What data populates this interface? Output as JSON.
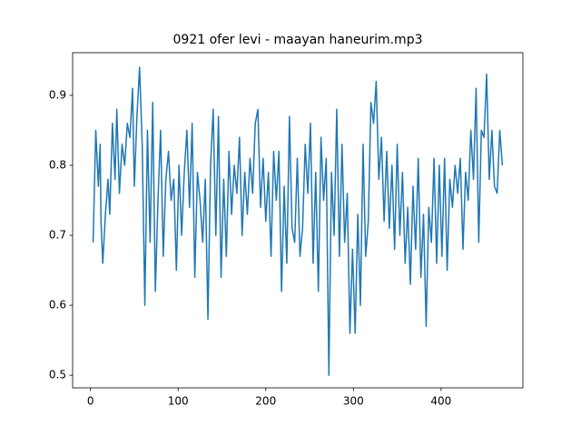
{
  "chart_data": {
    "type": "line",
    "title": "0921 ofer levi - maayan haneurim.mp3",
    "x": [
      3,
      6,
      9,
      11,
      12,
      14,
      17,
      20,
      22,
      25,
      28,
      30,
      33,
      36,
      39,
      42,
      45,
      48,
      50,
      53,
      56,
      59,
      62,
      65,
      68,
      71,
      74,
      77,
      80,
      83,
      86,
      89,
      92,
      95,
      98,
      101,
      104,
      107,
      110,
      113,
      116,
      119,
      122,
      125,
      128,
      131,
      134,
      137,
      140,
      143,
      146,
      149,
      152,
      155,
      158,
      161,
      164,
      167,
      170,
      173,
      176,
      179,
      182,
      185,
      188,
      191,
      194,
      197,
      200,
      203,
      206,
      209,
      212,
      215,
      218,
      221,
      224,
      227,
      230,
      233,
      236,
      239,
      242,
      245,
      248,
      251,
      254,
      257,
      260,
      263,
      266,
      269,
      272,
      275,
      278,
      281,
      284,
      287,
      290,
      293,
      296,
      299,
      302,
      305,
      308,
      311,
      314,
      317,
      320,
      323,
      326,
      329,
      332,
      335,
      338,
      341,
      344,
      347,
      350,
      353,
      356,
      359,
      362,
      365,
      368,
      371,
      374,
      377,
      380,
      383,
      386,
      389,
      392,
      395,
      398,
      401,
      404,
      407,
      410,
      413,
      416,
      419,
      422,
      425,
      428,
      431,
      434,
      437,
      440,
      443,
      446,
      449,
      452,
      455,
      458,
      461,
      464,
      467,
      470
    ],
    "series": [
      {
        "color": "#1f77b4",
        "values": [
          0.69,
          0.85,
          0.77,
          0.83,
          0.72,
          0.66,
          0.73,
          0.78,
          0.73,
          0.86,
          0.78,
          0.88,
          0.76,
          0.83,
          0.8,
          0.86,
          0.84,
          0.91,
          0.77,
          0.87,
          0.94,
          0.83,
          0.6,
          0.85,
          0.69,
          0.89,
          0.62,
          0.75,
          0.85,
          0.67,
          0.78,
          0.82,
          0.75,
          0.78,
          0.65,
          0.8,
          0.7,
          0.79,
          0.85,
          0.74,
          0.86,
          0.64,
          0.79,
          0.75,
          0.69,
          0.78,
          0.58,
          0.8,
          0.88,
          0.7,
          0.87,
          0.64,
          0.78,
          0.67,
          0.82,
          0.73,
          0.8,
          0.76,
          0.84,
          0.7,
          0.79,
          0.73,
          0.81,
          0.76,
          0.86,
          0.88,
          0.74,
          0.81,
          0.72,
          0.79,
          0.67,
          0.82,
          0.75,
          0.82,
          0.62,
          0.77,
          0.66,
          0.87,
          0.71,
          0.69,
          0.81,
          0.67,
          0.71,
          0.83,
          0.76,
          0.86,
          0.66,
          0.79,
          0.62,
          0.84,
          0.75,
          0.81,
          0.5,
          0.79,
          0.7,
          0.88,
          0.67,
          0.83,
          0.69,
          0.76,
          0.56,
          0.68,
          0.56,
          0.73,
          0.6,
          0.83,
          0.67,
          0.72,
          0.89,
          0.86,
          0.92,
          0.78,
          0.84,
          0.72,
          0.82,
          0.71,
          0.8,
          0.68,
          0.83,
          0.7,
          0.79,
          0.66,
          0.74,
          0.63,
          0.77,
          0.68,
          0.81,
          0.64,
          0.73,
          0.57,
          0.74,
          0.69,
          0.81,
          0.66,
          0.8,
          0.67,
          0.81,
          0.65,
          0.78,
          0.74,
          0.8,
          0.76,
          0.81,
          0.68,
          0.79,
          0.75,
          0.85,
          0.78,
          0.91,
          0.69,
          0.85,
          0.84,
          0.93,
          0.78,
          0.85,
          0.77,
          0.76,
          0.85,
          0.8
        ]
      }
    ],
    "xlim": [
      -20.4,
      493.4
    ],
    "xticks": [
      0,
      100,
      200,
      300,
      400
    ],
    "ylim": [
      0.482,
      0.961
    ],
    "yticks": [
      0.5,
      0.6,
      0.7,
      0.8,
      0.9
    ]
  }
}
